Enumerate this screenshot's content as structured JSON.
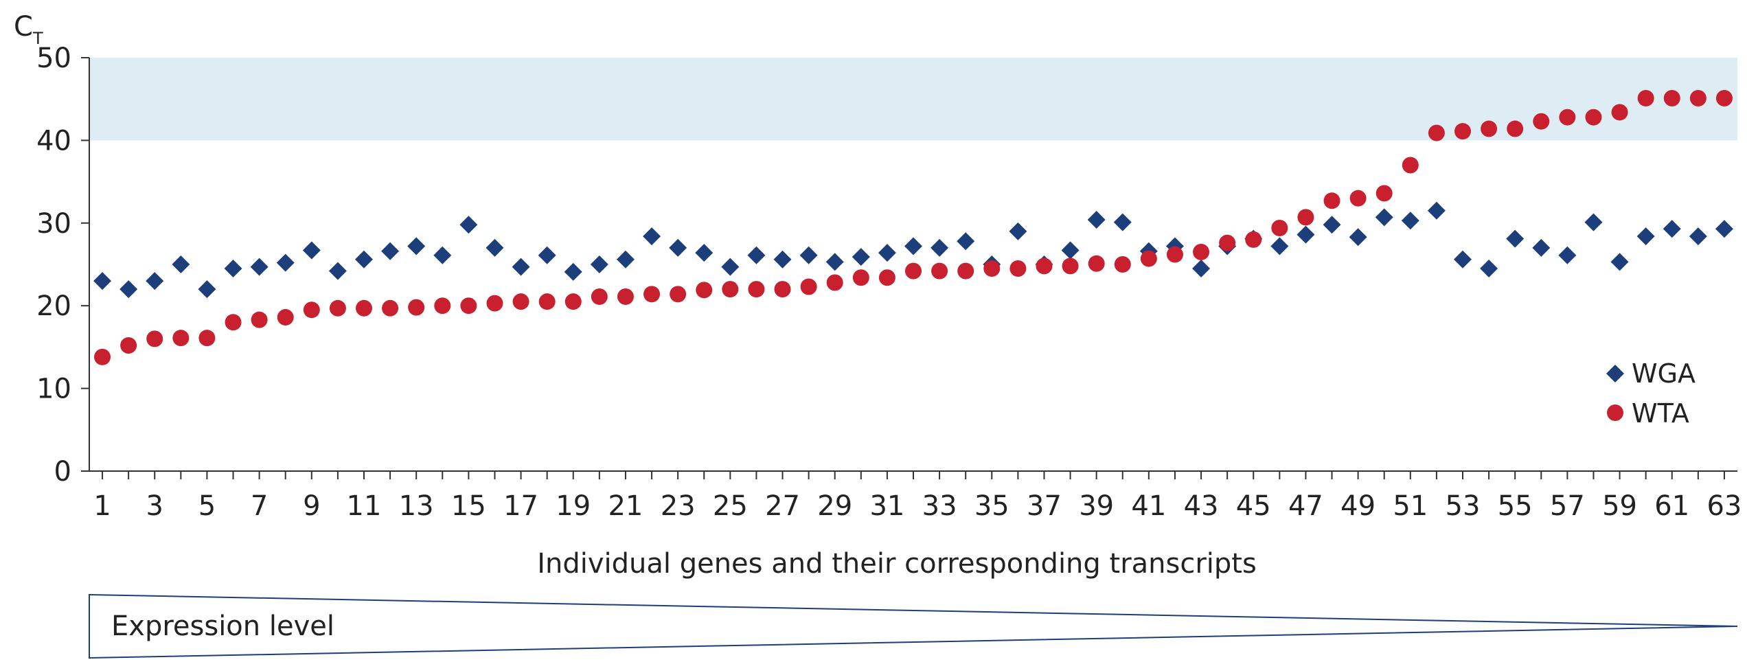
{
  "colors": {
    "wga": "#1c3f7c",
    "wta": "#c8202f",
    "band": "#deedf3",
    "axis": "#333333",
    "wedge_stroke": "#1c3f7c"
  },
  "chart_data": {
    "type": "scatter",
    "title": "",
    "ylabel_main": "C",
    "ylabel_sub": "T",
    "xlabel": "Individual genes and their corresponding transcripts",
    "ylim": [
      0,
      50
    ],
    "yticks": [
      0,
      10,
      20,
      30,
      40,
      50
    ],
    "xlim": [
      0.5,
      63.5
    ],
    "xtick_labels": [
      1,
      3,
      5,
      7,
      9,
      11,
      13,
      15,
      17,
      19,
      21,
      23,
      25,
      27,
      29,
      31,
      33,
      35,
      37,
      39,
      41,
      43,
      45,
      47,
      49,
      51,
      53,
      55,
      57,
      59,
      61,
      63
    ],
    "grid": false,
    "legend_position": "right",
    "shaded_band": [
      40,
      50
    ],
    "series": [
      {
        "name": "WGA",
        "marker": "diamond",
        "x": [
          1,
          2,
          3,
          4,
          5,
          6,
          7,
          8,
          9,
          10,
          11,
          12,
          13,
          14,
          15,
          16,
          17,
          18,
          19,
          20,
          21,
          22,
          23,
          24,
          25,
          26,
          27,
          28,
          29,
          30,
          31,
          32,
          33,
          34,
          35,
          36,
          37,
          38,
          39,
          40,
          41,
          42,
          43,
          44,
          45,
          46,
          47,
          48,
          49,
          50,
          51,
          52,
          53,
          54,
          55,
          56,
          57,
          58,
          59,
          60,
          61,
          62,
          63
        ],
        "values": [
          23,
          22,
          23,
          25,
          22,
          24.5,
          24.7,
          25.2,
          26.7,
          24.2,
          25.6,
          26.6,
          27.2,
          26.1,
          29.8,
          27,
          24.7,
          26.1,
          24.1,
          25,
          25.6,
          28.4,
          27,
          26.4,
          24.7,
          26.1,
          25.6,
          26.1,
          25.3,
          25.9,
          26.4,
          27.2,
          27,
          27.8,
          25,
          29,
          25,
          26.7,
          30.4,
          30.1,
          26.6,
          27.2,
          24.5,
          27.2,
          28.1,
          27.2,
          28.6,
          29.8,
          28.3,
          30.7,
          30.3,
          31.5,
          25.6,
          24.5,
          28.1,
          27,
          26.1,
          30.1,
          25.3,
          28.4,
          29.3,
          28.4,
          29.3
        ]
      },
      {
        "name": "WTA",
        "marker": "circle",
        "x": [
          1,
          2,
          3,
          4,
          5,
          6,
          7,
          8,
          9,
          10,
          11,
          12,
          13,
          14,
          15,
          16,
          17,
          18,
          19,
          20,
          21,
          22,
          23,
          24,
          25,
          26,
          27,
          28,
          29,
          30,
          31,
          32,
          33,
          34,
          35,
          36,
          37,
          38,
          39,
          40,
          41,
          42,
          43,
          44,
          45,
          46,
          47,
          48,
          49,
          50,
          51,
          52,
          53,
          54,
          55,
          56,
          57,
          58,
          59,
          60,
          61,
          62,
          63
        ],
        "values": [
          13.8,
          15.2,
          16,
          16.1,
          16.1,
          18,
          18.3,
          18.6,
          19.5,
          19.7,
          19.7,
          19.7,
          19.8,
          20,
          20,
          20.3,
          20.5,
          20.5,
          20.5,
          21.1,
          21.1,
          21.4,
          21.4,
          21.9,
          22,
          22,
          22,
          22.3,
          22.8,
          23.4,
          23.4,
          24.2,
          24.2,
          24.2,
          24.5,
          24.5,
          24.8,
          24.8,
          25.1,
          25,
          25.7,
          26.2,
          26.5,
          27.6,
          28,
          29.4,
          30.7,
          32.7,
          33,
          33.6,
          37,
          40.9,
          41.1,
          41.4,
          41.4,
          42.3,
          42.8,
          42.8,
          43.4,
          45.1,
          45.1,
          45.1,
          45.1
        ]
      }
    ]
  },
  "expression_panel": {
    "label": "Expression level"
  }
}
